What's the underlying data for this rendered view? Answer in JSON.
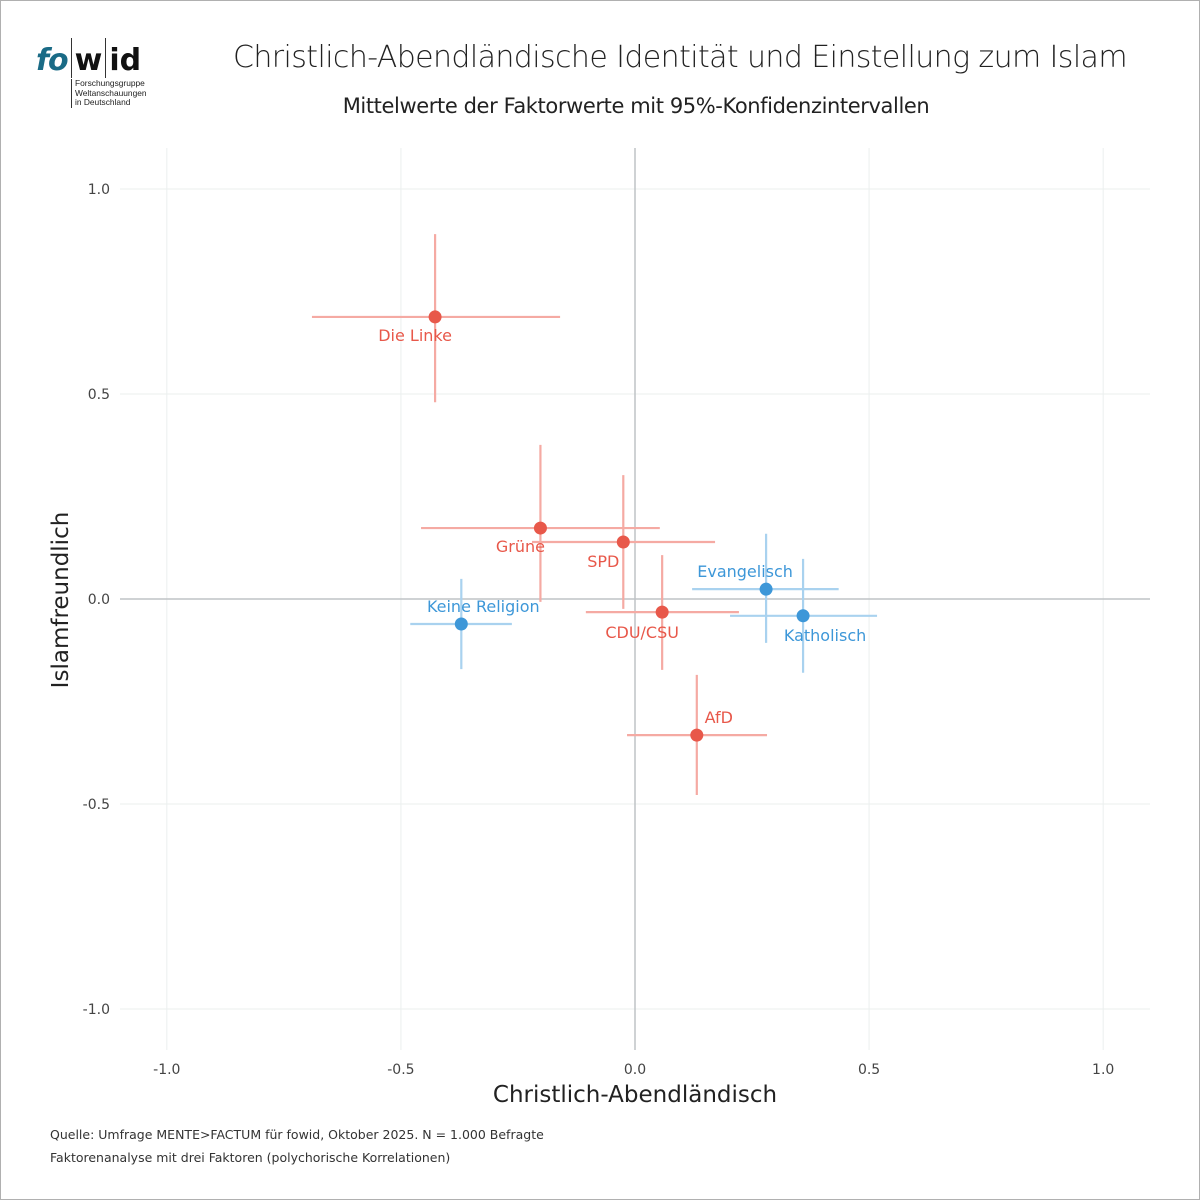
{
  "logo": {
    "brand_left": "fo",
    "brand_mid": "w",
    "brand_right": "id",
    "tagline": [
      "Forschungsgruppe",
      "Weltanschauungen",
      "in Deutschland"
    ]
  },
  "colors": {
    "party": "#e8584a",
    "party_ci": "#f5aaa3",
    "religion": "#3d97d8",
    "religion_ci": "#a9d2ef",
    "grid": "#ebefee",
    "zero_line": "#bfc3c6",
    "logo_accent": "#1a6b86"
  },
  "chart_data": {
    "type": "scatter",
    "title": "Christlich-Abendländische Identität und Einstellung zum Islam",
    "subtitle": "Mittelwerte der Faktorwerte mit 95%-Konfidenzintervallen",
    "xlabel": "Christlich-Abendländisch",
    "ylabel": "Islamfreundlich",
    "xlim": [
      -1.1,
      1.1
    ],
    "ylim": [
      -1.1,
      1.1
    ],
    "xticks": [
      -1.0,
      -0.5,
      0.0,
      0.5,
      1.0
    ],
    "yticks": [
      -1.0,
      -0.5,
      0.0,
      0.5,
      1.0
    ],
    "xtick_labels": [
      "-1.0",
      "-0.5",
      "0.0",
      "0.5",
      "1.0"
    ],
    "ytick_labels": [
      "-1.0",
      "-0.5",
      "0.0",
      "0.5",
      "1.0"
    ],
    "grid": true,
    "legend": "none",
    "points": [
      {
        "label": "Die Linke",
        "group": "party",
        "x": -0.427,
        "x_lo": -0.69,
        "x_hi": -0.16,
        "y": 0.688,
        "y_lo": 0.48,
        "y_hi": 0.89
      },
      {
        "label": "Grüne",
        "group": "party",
        "x": -0.202,
        "x_lo": -0.457,
        "x_hi": 0.053,
        "y": 0.173,
        "y_lo": -0.007,
        "y_hi": 0.376
      },
      {
        "label": "SPD",
        "group": "party",
        "x": -0.025,
        "x_lo": -0.22,
        "x_hi": 0.171,
        "y": 0.139,
        "y_lo": -0.024,
        "y_hi": 0.302
      },
      {
        "label": "CDU/CSU",
        "group": "party",
        "x": 0.058,
        "x_lo": -0.105,
        "x_hi": 0.222,
        "y": -0.032,
        "y_lo": -0.173,
        "y_hi": 0.107
      },
      {
        "label": "AfD",
        "group": "party",
        "x": 0.132,
        "x_lo": -0.017,
        "x_hi": 0.282,
        "y": -0.332,
        "y_lo": -0.478,
        "y_hi": -0.185
      },
      {
        "label": "Keine Religion",
        "group": "religion",
        "x": -0.371,
        "x_lo": -0.48,
        "x_hi": -0.263,
        "y": -0.061,
        "y_lo": -0.171,
        "y_hi": 0.049
      },
      {
        "label": "Evangelisch",
        "group": "religion",
        "x": 0.28,
        "x_lo": 0.122,
        "x_hi": 0.435,
        "y": 0.024,
        "y_lo": -0.107,
        "y_hi": 0.159
      },
      {
        "label": "Katholisch",
        "group": "religion",
        "x": 0.359,
        "x_lo": 0.203,
        "x_hi": 0.517,
        "y": -0.041,
        "y_lo": -0.18,
        "y_hi": 0.098
      }
    ]
  },
  "captions": {
    "source": "Quelle: Umfrage MENTE>FACTUM für fowid, Oktober 2025. N = 1.000 Befragte",
    "method": "Faktorenanalyse mit drei Faktoren (polychorische Korrelationen)"
  }
}
